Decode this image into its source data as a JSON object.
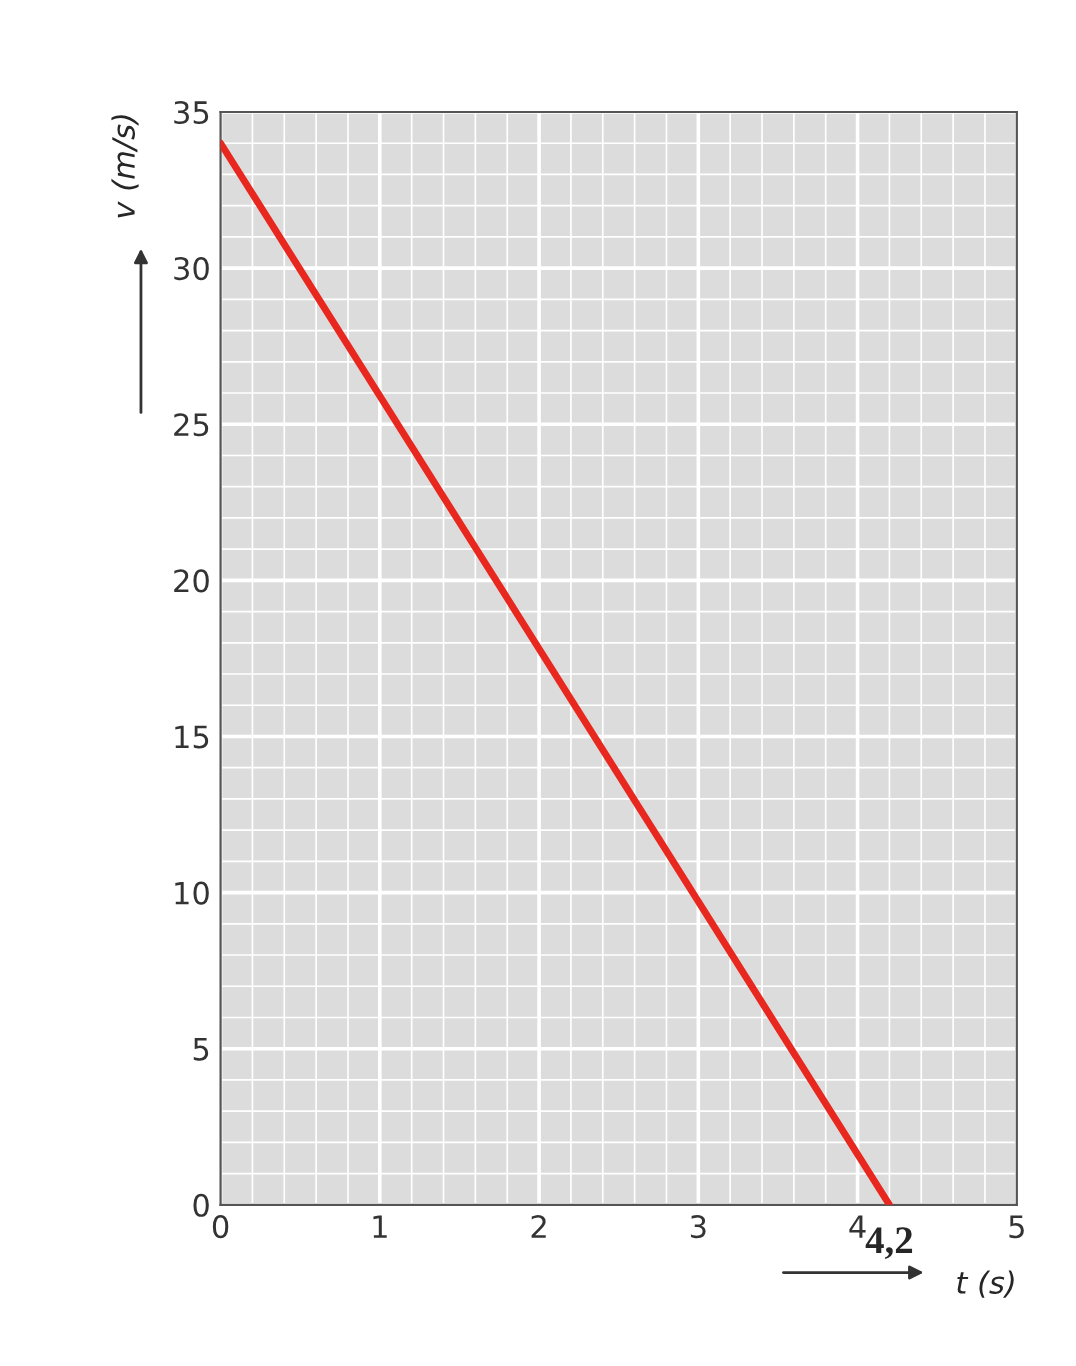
{
  "chart_data": {
    "type": "line",
    "xlabel": "t (s)",
    "ylabel": "v (m/s)",
    "x": [
      0,
      4.2
    ],
    "series": [
      {
        "color": "#e8281e",
        "values": [
          34,
          0
        ]
      }
    ],
    "xlim": [
      0,
      5
    ],
    "ylim": [
      0,
      35
    ],
    "xticks": [
      0,
      1,
      2,
      3,
      4,
      5
    ],
    "yticks": [
      0,
      5,
      10,
      15,
      20,
      25,
      30,
      35
    ],
    "grid": true,
    "marker": "none",
    "line_style": "solid",
    "annotations": [
      {
        "text": "4,2",
        "x": 4.2,
        "y": 0
      }
    ]
  }
}
